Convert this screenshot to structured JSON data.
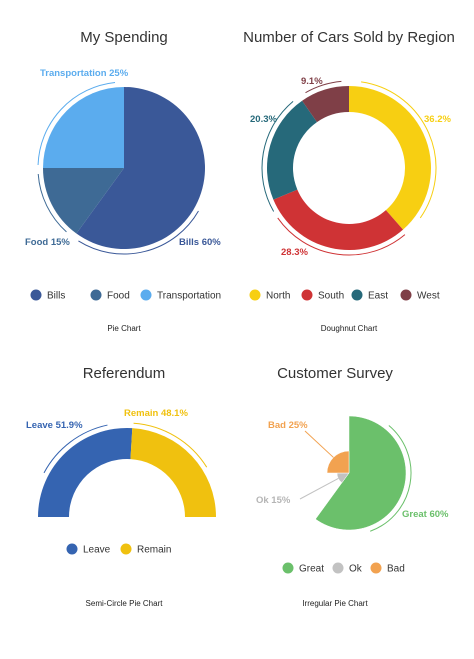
{
  "chart_data": [
    {
      "type": "pie",
      "title": "My Spending",
      "caption": "Pie Chart",
      "categories": [
        "Bills",
        "Food",
        "Transportation"
      ],
      "values": [
        60,
        15,
        25
      ],
      "data_labels": [
        "Bills 60%",
        "Food 15%",
        "Transportation 25%"
      ],
      "colors": [
        "#3a5898",
        "#3e6a95",
        "#5bacee"
      ],
      "legend": "bottom"
    },
    {
      "type": "pie",
      "variant": "doughnut",
      "title": "Number of Cars Sold by Region",
      "caption": "Doughnut Chart",
      "categories": [
        "North",
        "South",
        "East",
        "West"
      ],
      "values": [
        36.2,
        28.3,
        20.3,
        9.1
      ],
      "data_labels": [
        "36.2%",
        "28.3%",
        "20.3%",
        "9.1%"
      ],
      "colors": [
        "#f7cf12",
        "#cf3335",
        "#26697a",
        "#7f3f47"
      ],
      "legend": "bottom"
    },
    {
      "type": "pie",
      "variant": "semi-circle",
      "title": "Referendum",
      "caption": "Semi-Circle Pie Chart",
      "categories": [
        "Leave",
        "Remain"
      ],
      "values": [
        51.9,
        48.1
      ],
      "data_labels": [
        "Leave 51.9%",
        "Remain 48.1%"
      ],
      "colors": [
        "#3564b1",
        "#f0c10f"
      ],
      "legend": "bottom"
    },
    {
      "type": "pie",
      "variant": "irregular",
      "title": "Customer Survey",
      "caption": "Irregular Pie Chart",
      "categories": [
        "Great",
        "Ok",
        "Bad"
      ],
      "values": [
        60,
        15,
        25
      ],
      "data_labels": [
        "Great 60%",
        "Ok 15%",
        "Bad 25%"
      ],
      "colors": [
        "#6bc06b",
        "#c2c2c2",
        "#f2a250"
      ],
      "legend": "bottom"
    }
  ]
}
